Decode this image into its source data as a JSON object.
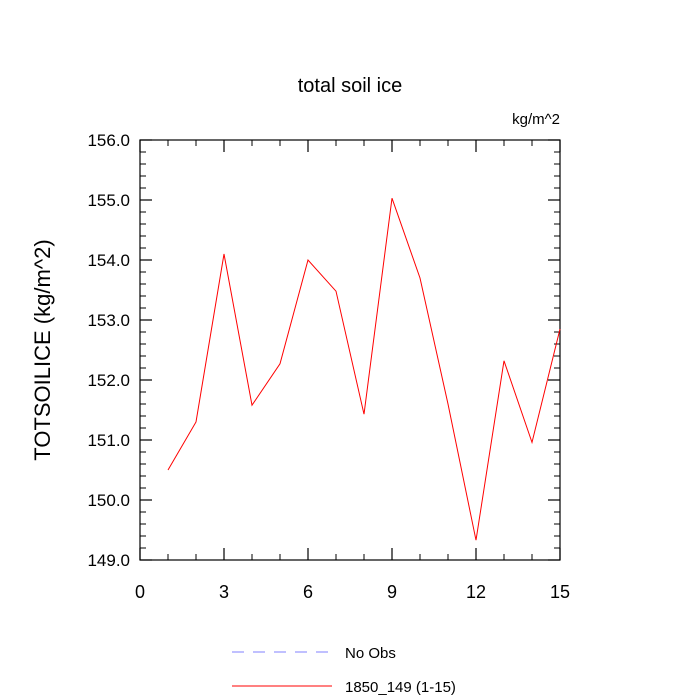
{
  "chart_data": {
    "type": "line",
    "title": "total soil ice",
    "units_label": "kg/m^2",
    "ylabel": "TOTSOILICE  (kg/m^2)",
    "xlabel": "",
    "xlim": [
      0,
      15
    ],
    "ylim": [
      149.0,
      156.0
    ],
    "xticks": [
      0,
      3,
      6,
      9,
      12,
      15
    ],
    "xtick_labels": [
      "0",
      "3",
      "6",
      "9",
      "12",
      "15"
    ],
    "yticks": [
      149.0,
      150.0,
      151.0,
      152.0,
      153.0,
      154.0,
      155.0,
      156.0
    ],
    "ytick_labels": [
      "149.0",
      "150.0",
      "151.0",
      "152.0",
      "153.0",
      "154.0",
      "155.0",
      "156.0"
    ],
    "grid": false,
    "legend_position": "bottom-center",
    "series": [
      {
        "name": "1850_149 (1-15)",
        "color": "#ff0000",
        "dash": "solid",
        "x": [
          1,
          2,
          3,
          4,
          5,
          6,
          7,
          8,
          9,
          10,
          11,
          12,
          13,
          14,
          15
        ],
        "values": [
          150.5,
          151.3,
          154.1,
          151.58,
          152.27,
          154.0,
          153.48,
          151.43,
          155.03,
          153.7,
          151.6,
          149.33,
          152.32,
          150.96,
          152.85
        ]
      }
    ],
    "legend": [
      {
        "label": "No Obs",
        "color": "#8080ff",
        "dash": "dashed"
      },
      {
        "label": "1850_149 (1-15)",
        "color": "#ff0000",
        "dash": "solid"
      }
    ]
  }
}
